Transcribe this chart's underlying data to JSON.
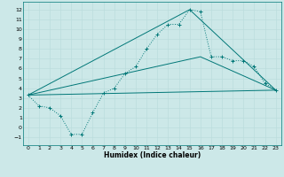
{
  "title": "",
  "xlabel": "Humidex (Indice chaleur)",
  "bg_color": "#cce8e8",
  "grid_color": "#bbdddd",
  "line_color": "#007777",
  "xlim": [
    -0.5,
    23.5
  ],
  "ylim": [
    -1.8,
    12.8
  ],
  "xticks": [
    0,
    1,
    2,
    3,
    4,
    5,
    6,
    7,
    8,
    9,
    10,
    11,
    12,
    13,
    14,
    15,
    16,
    17,
    18,
    19,
    20,
    21,
    22,
    23
  ],
  "yticks": [
    -1,
    0,
    1,
    2,
    3,
    4,
    5,
    6,
    7,
    8,
    9,
    10,
    11,
    12
  ],
  "main_x": [
    0,
    1,
    2,
    3,
    4,
    5,
    6,
    7,
    8,
    9,
    10,
    11,
    12,
    13,
    14,
    15,
    16,
    17,
    18,
    19,
    20,
    21,
    22,
    23
  ],
  "main_y": [
    3.3,
    2.2,
    2.0,
    1.2,
    -0.7,
    -0.7,
    1.5,
    3.5,
    4.0,
    5.5,
    6.2,
    8.0,
    9.5,
    10.5,
    10.5,
    12.0,
    11.8,
    7.2,
    7.2,
    6.8,
    6.8,
    6.2,
    4.5,
    3.8
  ],
  "line1_x": [
    0,
    15,
    23
  ],
  "line1_y": [
    3.3,
    12.0,
    3.8
  ],
  "line2_x": [
    0,
    16,
    23
  ],
  "line2_y": [
    3.3,
    7.2,
    3.8
  ],
  "line3_x": [
    0,
    23
  ],
  "line3_y": [
    3.3,
    3.8
  ]
}
